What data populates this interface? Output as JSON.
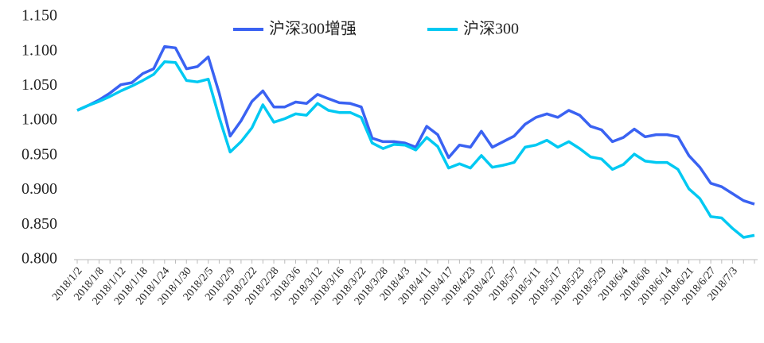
{
  "chart_data": {
    "type": "line",
    "categories": [
      "2018/1/2",
      null,
      "2018/1/8",
      null,
      "2018/1/12",
      null,
      "2018/1/18",
      null,
      "2018/1/24",
      null,
      "2018/1/30",
      null,
      "2018/2/5",
      null,
      "2018/2/9",
      null,
      "2018/2/22",
      null,
      "2018/2/28",
      null,
      "2018/3/6",
      null,
      "2018/3/12",
      null,
      "2018/3/16",
      null,
      "2018/3/22",
      null,
      "2018/3/28",
      null,
      "2018/4/3",
      null,
      "2018/4/11",
      null,
      "2018/4/17",
      null,
      "2018/4/23",
      null,
      "2018/4/27",
      null,
      "2018/5/7",
      null,
      "2018/5/11",
      null,
      "2018/5/17",
      null,
      "2018/5/23",
      null,
      "2018/5/29",
      null,
      "2018/6/4",
      null,
      "2018/6/8",
      null,
      "2018/6/14",
      null,
      "2018/6/21",
      null,
      "2018/6/27",
      null,
      "2018/7/3",
      null,
      null
    ],
    "series": [
      {
        "name": "沪深300增强",
        "color": "#3a62f2",
        "values": [
          1.015,
          1.022,
          1.03,
          1.04,
          1.052,
          1.055,
          1.068,
          1.075,
          1.107,
          1.105,
          1.075,
          1.078,
          1.092,
          1.04,
          0.978,
          1.0,
          1.028,
          1.043,
          1.02,
          1.02,
          1.027,
          1.025,
          1.038,
          1.032,
          1.026,
          1.025,
          1.02,
          0.975,
          0.97,
          0.97,
          0.968,
          0.962,
          0.992,
          0.98,
          0.947,
          0.965,
          0.962,
          0.985,
          0.962,
          0.97,
          0.978,
          0.995,
          1.005,
          1.01,
          1.005,
          1.015,
          1.008,
          0.992,
          0.987,
          0.97,
          0.976,
          0.988,
          0.977,
          0.98,
          0.98,
          0.977,
          0.95,
          0.933,
          0.91,
          0.905,
          0.895,
          0.885,
          0.88
        ]
      },
      {
        "name": "沪深300",
        "color": "#00c9f2",
        "values": [
          1.015,
          1.022,
          1.028,
          1.035,
          1.043,
          1.05,
          1.058,
          1.067,
          1.085,
          1.084,
          1.058,
          1.056,
          1.06,
          1.005,
          0.955,
          0.97,
          0.99,
          1.023,
          0.998,
          1.003,
          1.01,
          1.008,
          1.025,
          1.015,
          1.012,
          1.012,
          1.005,
          0.968,
          0.96,
          0.966,
          0.965,
          0.958,
          0.976,
          0.963,
          0.932,
          0.938,
          0.932,
          0.95,
          0.933,
          0.936,
          0.94,
          0.962,
          0.965,
          0.972,
          0.962,
          0.97,
          0.96,
          0.948,
          0.945,
          0.93,
          0.937,
          0.952,
          0.942,
          0.94,
          0.94,
          0.93,
          0.902,
          0.888,
          0.862,
          0.86,
          0.845,
          0.832,
          0.835
        ]
      }
    ],
    "ylim": [
      0.8,
      1.15
    ],
    "yticks": [
      {
        "value": 0.8,
        "label": "0.800"
      },
      {
        "value": 0.85,
        "label": "0.850"
      },
      {
        "value": 0.9,
        "label": "0.900"
      },
      {
        "value": 0.95,
        "label": "0.950"
      },
      {
        "value": 1.0,
        "label": "1.000"
      },
      {
        "value": 1.05,
        "label": "1.050"
      },
      {
        "value": 1.1,
        "label": "1.100"
      },
      {
        "value": 1.15,
        "label": "1.150"
      }
    ],
    "grid": false,
    "legend": "top"
  }
}
